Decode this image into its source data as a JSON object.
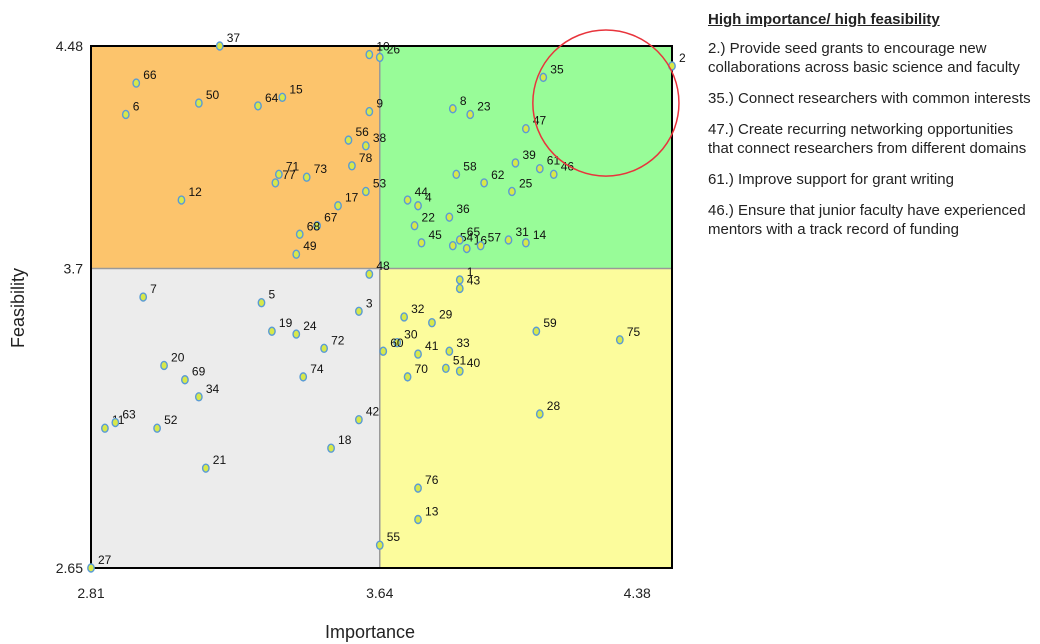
{
  "chart_data": {
    "type": "scatter",
    "xlabel": "Importance",
    "ylabel": "Feasibility",
    "xlim": [
      2.81,
      4.48
    ],
    "ylim": [
      2.65,
      4.48
    ],
    "x_ticks": [
      "2.81",
      "3.64",
      "4.38"
    ],
    "y_ticks": [
      "4.48",
      "3.7",
      "2.65"
    ],
    "x_split": 3.64,
    "y_split": 3.7,
    "quadrant_colors": {
      "top_left": "#fcc46c",
      "top_right": "#98fc98",
      "bottom_left": "#ececec",
      "bottom_right": "#fcfc9c"
    },
    "highlight": {
      "shape": "circle",
      "color": "#e8343c",
      "center": [
        4.29,
        4.28
      ],
      "radius_x": 0.21
    },
    "points": [
      {
        "label": "2",
        "x": 4.48,
        "y": 4.41
      },
      {
        "label": "6",
        "x": 2.91,
        "y": 4.24
      },
      {
        "label": "66",
        "x": 2.94,
        "y": 4.35
      },
      {
        "label": "37",
        "x": 3.18,
        "y": 4.48
      },
      {
        "label": "50",
        "x": 3.12,
        "y": 4.28
      },
      {
        "label": "64",
        "x": 3.29,
        "y": 4.27
      },
      {
        "label": "15",
        "x": 3.36,
        "y": 4.3
      },
      {
        "label": "10",
        "x": 3.61,
        "y": 4.45
      },
      {
        "label": "26",
        "x": 3.64,
        "y": 4.44
      },
      {
        "label": "9",
        "x": 3.61,
        "y": 4.25
      },
      {
        "label": "56",
        "x": 3.55,
        "y": 4.15
      },
      {
        "label": "38",
        "x": 3.6,
        "y": 4.13
      },
      {
        "label": "78",
        "x": 3.56,
        "y": 4.06
      },
      {
        "label": "71",
        "x": 3.35,
        "y": 4.03
      },
      {
        "label": "73",
        "x": 3.43,
        "y": 4.02
      },
      {
        "label": "77",
        "x": 3.34,
        "y": 4.0
      },
      {
        "label": "12",
        "x": 3.07,
        "y": 3.94
      },
      {
        "label": "53",
        "x": 3.6,
        "y": 3.97
      },
      {
        "label": "17",
        "x": 3.52,
        "y": 3.92
      },
      {
        "label": "67",
        "x": 3.46,
        "y": 3.85
      },
      {
        "label": "68",
        "x": 3.41,
        "y": 3.82
      },
      {
        "label": "49",
        "x": 3.4,
        "y": 3.75
      },
      {
        "label": "8",
        "x": 3.85,
        "y": 4.26
      },
      {
        "label": "23",
        "x": 3.9,
        "y": 4.24
      },
      {
        "label": "35",
        "x": 4.11,
        "y": 4.37
      },
      {
        "label": "47",
        "x": 4.06,
        "y": 4.19
      },
      {
        "label": "39",
        "x": 4.03,
        "y": 4.07
      },
      {
        "label": "61",
        "x": 4.1,
        "y": 4.05
      },
      {
        "label": "46",
        "x": 4.14,
        "y": 4.03
      },
      {
        "label": "58",
        "x": 3.86,
        "y": 4.03
      },
      {
        "label": "62",
        "x": 3.94,
        "y": 4.0
      },
      {
        "label": "25",
        "x": 4.02,
        "y": 3.97
      },
      {
        "label": "44",
        "x": 3.72,
        "y": 3.94
      },
      {
        "label": "4",
        "x": 3.75,
        "y": 3.92
      },
      {
        "label": "36",
        "x": 3.84,
        "y": 3.88
      },
      {
        "label": "22",
        "x": 3.74,
        "y": 3.85
      },
      {
        "label": "45",
        "x": 3.76,
        "y": 3.79
      },
      {
        "label": "54",
        "x": 3.85,
        "y": 3.78
      },
      {
        "label": "65",
        "x": 3.87,
        "y": 3.8
      },
      {
        "label": "16",
        "x": 3.89,
        "y": 3.77
      },
      {
        "label": "57",
        "x": 3.93,
        "y": 3.78
      },
      {
        "label": "31",
        "x": 4.01,
        "y": 3.8
      },
      {
        "label": "14",
        "x": 4.06,
        "y": 3.79
      },
      {
        "label": "7",
        "x": 2.96,
        "y": 3.6
      },
      {
        "label": "48",
        "x": 3.61,
        "y": 3.68
      },
      {
        "label": "5",
        "x": 3.3,
        "y": 3.58
      },
      {
        "label": "3",
        "x": 3.58,
        "y": 3.55
      },
      {
        "label": "19",
        "x": 3.33,
        "y": 3.48
      },
      {
        "label": "24",
        "x": 3.4,
        "y": 3.47
      },
      {
        "label": "72",
        "x": 3.48,
        "y": 3.42
      },
      {
        "label": "20",
        "x": 3.02,
        "y": 3.36
      },
      {
        "label": "69",
        "x": 3.08,
        "y": 3.31
      },
      {
        "label": "74",
        "x": 3.42,
        "y": 3.32
      },
      {
        "label": "34",
        "x": 3.12,
        "y": 3.25
      },
      {
        "label": "11",
        "x": 2.85,
        "y": 3.14
      },
      {
        "label": "63",
        "x": 2.88,
        "y": 3.16
      },
      {
        "label": "52",
        "x": 3.0,
        "y": 3.14
      },
      {
        "label": "42",
        "x": 3.58,
        "y": 3.17
      },
      {
        "label": "18",
        "x": 3.5,
        "y": 3.07
      },
      {
        "label": "21",
        "x": 3.14,
        "y": 3.0
      },
      {
        "label": "27",
        "x": 2.81,
        "y": 2.65
      },
      {
        "label": "43",
        "x": 3.87,
        "y": 3.63
      },
      {
        "label": "1",
        "x": 3.87,
        "y": 3.66
      },
      {
        "label": "32",
        "x": 3.71,
        "y": 3.53
      },
      {
        "label": "29",
        "x": 3.79,
        "y": 3.51
      },
      {
        "label": "30",
        "x": 3.69,
        "y": 3.44
      },
      {
        "label": "60",
        "x": 3.65,
        "y": 3.41
      },
      {
        "label": "41",
        "x": 3.75,
        "y": 3.4
      },
      {
        "label": "33",
        "x": 3.84,
        "y": 3.41
      },
      {
        "label": "51",
        "x": 3.83,
        "y": 3.35
      },
      {
        "label": "40",
        "x": 3.87,
        "y": 3.34
      },
      {
        "label": "70",
        "x": 3.72,
        "y": 3.32
      },
      {
        "label": "59",
        "x": 4.09,
        "y": 3.48
      },
      {
        "label": "75",
        "x": 4.33,
        "y": 3.45
      },
      {
        "label": "28",
        "x": 4.1,
        "y": 3.19
      },
      {
        "label": "76",
        "x": 3.75,
        "y": 2.93
      },
      {
        "label": "13",
        "x": 3.75,
        "y": 2.82
      },
      {
        "label": "55",
        "x": 3.64,
        "y": 2.73
      }
    ]
  },
  "panel": {
    "heading": "High importance/ high feasibility",
    "items": [
      "2.) Provide seed grants to encourage new collaborations across basic science and faculty",
      "35.) Connect researchers with common interests",
      "47.) Create recurring networking opportunities that connect researchers from different domains",
      "61.) Improve support for grant writing",
      "46.) Ensure that junior faculty have experienced mentors with a track record of funding"
    ]
  }
}
